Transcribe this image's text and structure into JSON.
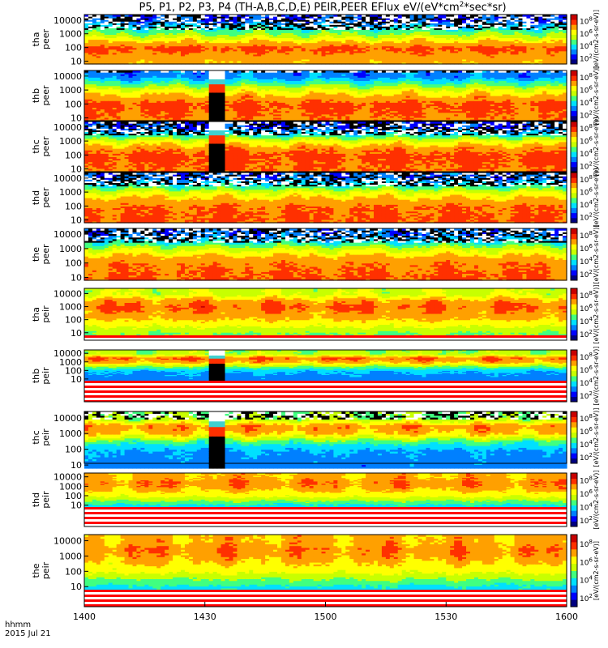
{
  "chart_data": {
    "type": "heatmap",
    "title_parts": [
      "P5, P1, P2, P3, P4 (TH-A,B,C,D,E) PEIR,PEER EFlux eV/(eV*cm",
      "2",
      "*sec*sr)"
    ],
    "colorbar_unit": "[eV/(cm2-s-sr-eV)]",
    "x_axis": {
      "range_minutes_after_1400": [
        0,
        120
      ],
      "ticks": [
        {
          "label": "1400",
          "minutes": 0
        },
        {
          "label": "1430",
          "minutes": 30
        },
        {
          "label": "1500",
          "minutes": 60
        },
        {
          "label": "1530",
          "minutes": 90
        },
        {
          "label": "1600",
          "minutes": 120
        }
      ],
      "label_line1": "hhmm",
      "label_line2": "2015 Jul 21"
    },
    "y_ticks": [
      "10000",
      "1000",
      "100",
      "10"
    ],
    "y_tick_values": [
      10000,
      1000,
      100,
      10
    ],
    "colorbar_ticks": [
      {
        "label": "10",
        "exp": "8",
        "value": 8
      },
      {
        "label": "10",
        "exp": "6",
        "value": 6
      },
      {
        "label": "10",
        "exp": "4",
        "value": 4
      },
      {
        "label": "10",
        "exp": "2",
        "value": 2
      }
    ],
    "colorbar_range_log10": [
      1,
      9
    ],
    "colormap": [
      "#000080",
      "#0000ff",
      "#0080ff",
      "#00e0ff",
      "#40ff80",
      "#c8ff00",
      "#ffff00",
      "#ffa000",
      "#ff3000",
      "#c80000"
    ],
    "panels": [
      {
        "probe": "tha",
        "species": "peer",
        "label1": "tha",
        "label2": "peer",
        "profile": [
          [
            10,
            6.8
          ],
          [
            100,
            7.6
          ],
          [
            300,
            6.5
          ],
          [
            1000,
            5.0
          ],
          [
            3000,
            4.0
          ],
          [
            10000,
            2.5
          ]
        ],
        "noise_above_ev": 2000,
        "event": false
      },
      {
        "probe": "thb",
        "species": "peer",
        "label1": "thb",
        "label2": "peer",
        "profile": [
          [
            10,
            7.3
          ],
          [
            100,
            7.6
          ],
          [
            300,
            7.0
          ],
          [
            1000,
            6.0
          ],
          [
            3000,
            4.5
          ],
          [
            10000,
            3.0
          ]
        ],
        "noise_above_ev": 20000,
        "event": true
      },
      {
        "probe": "thc",
        "species": "peer",
        "label1": "thc",
        "label2": "peer",
        "profile": [
          [
            10,
            7.4
          ],
          [
            100,
            7.6
          ],
          [
            300,
            7.2
          ],
          [
            1000,
            6.0
          ],
          [
            3000,
            4.0
          ],
          [
            10000,
            2.5
          ]
        ],
        "noise_above_ev": 3000,
        "event": true
      },
      {
        "probe": "thd",
        "species": "peer",
        "label1": "thd",
        "label2": "peer",
        "profile": [
          [
            10,
            7.5
          ],
          [
            100,
            7.4
          ],
          [
            300,
            6.8
          ],
          [
            1000,
            5.8
          ],
          [
            3000,
            4.2
          ],
          [
            10000,
            2.8
          ]
        ],
        "noise_above_ev": 3000,
        "event": false
      },
      {
        "probe": "the",
        "species": "peer",
        "label1": "the",
        "label2": "peer",
        "profile": [
          [
            10,
            7.5
          ],
          [
            100,
            7.3
          ],
          [
            300,
            6.7
          ],
          [
            1000,
            5.6
          ],
          [
            3000,
            4.0
          ],
          [
            10000,
            2.8
          ]
        ],
        "noise_above_ev": 3000,
        "event": false
      },
      {
        "probe": "tha",
        "species": "peir",
        "label1": "tha",
        "label2": "peir",
        "profile": [
          [
            10,
            5.0
          ],
          [
            100,
            6.6
          ],
          [
            1000,
            7.5
          ],
          [
            3000,
            7.0
          ],
          [
            10000,
            5.6
          ]
        ],
        "noise_above_ev": 100000,
        "event": false
      },
      {
        "probe": "thb",
        "species": "peir",
        "label1": "thb",
        "label2": "peir",
        "profile": [
          [
            10,
            3.0
          ],
          [
            100,
            3.5
          ],
          [
            300,
            5.0
          ],
          [
            1000,
            6.8
          ],
          [
            3000,
            7.4
          ],
          [
            10000,
            5.2
          ]
        ],
        "noise_above_ev": 100000,
        "event": true
      },
      {
        "probe": "thc",
        "species": "peir",
        "label1": "thc",
        "label2": "peir",
        "profile": [
          [
            10,
            3.0
          ],
          [
            100,
            3.4
          ],
          [
            300,
            4.5
          ],
          [
            1000,
            6.6
          ],
          [
            3000,
            7.2
          ],
          [
            10000,
            5.0
          ]
        ],
        "noise_above_ev": 8000,
        "event": true
      },
      {
        "probe": "thd",
        "species": "peir",
        "label1": "thd",
        "label2": "peir",
        "profile": [
          [
            10,
            4.0
          ],
          [
            100,
            6.0
          ],
          [
            1000,
            7.1
          ],
          [
            3000,
            7.2
          ],
          [
            10000,
            6.8
          ]
        ],
        "noise_above_ev": 100000,
        "event": false
      },
      {
        "probe": "the",
        "species": "peir",
        "label1": "the",
        "label2": "peir",
        "profile": [
          [
            10,
            4.0
          ],
          [
            100,
            6.0
          ],
          [
            1000,
            7.0
          ],
          [
            3000,
            7.2
          ],
          [
            10000,
            6.8
          ]
        ],
        "noise_above_ev": 100000,
        "event": false
      }
    ],
    "event_window_minutes": [
      31,
      34.5
    ]
  }
}
